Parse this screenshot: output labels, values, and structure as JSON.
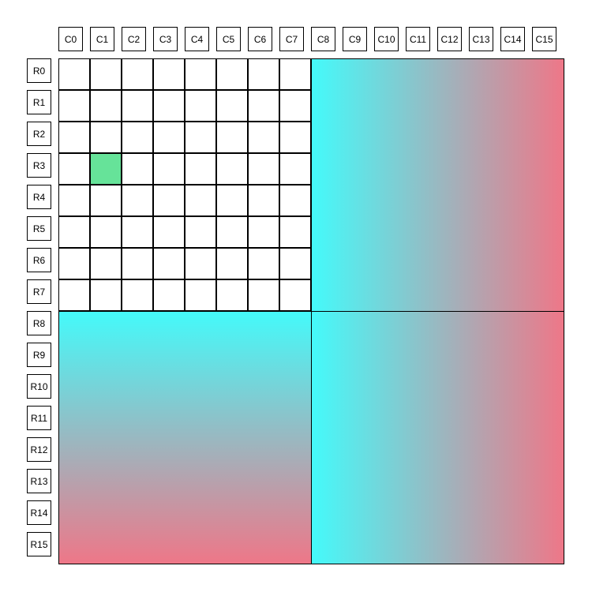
{
  "columns": [
    "C0",
    "C1",
    "C2",
    "C3",
    "C4",
    "C5",
    "C6",
    "C7",
    "C8",
    "C9",
    "C10",
    "C11",
    "C12",
    "C13",
    "C14",
    "C15"
  ],
  "rows": [
    "R0",
    "R1",
    "R2",
    "R3",
    "R4",
    "R5",
    "R6",
    "R7",
    "R8",
    "R9",
    "R10",
    "R11",
    "R12",
    "R13",
    "R14",
    "R15"
  ],
  "highlighted_cell": {
    "row": "R3",
    "column": "C1",
    "color": "#66e399"
  },
  "gradient": {
    "start_color": "#44fafa",
    "end_color": "#ee7788"
  },
  "blocks": [
    {
      "name": "top-right",
      "rows": "R0-R7",
      "columns": "C8-C15",
      "direction": "horizontal"
    },
    {
      "name": "bottom-left",
      "rows": "R8-R15",
      "columns": "C0-C7",
      "direction": "vertical"
    },
    {
      "name": "bottom-right",
      "rows": "R8-R15",
      "columns": "C8-C15",
      "direction": "horizontal"
    }
  ]
}
